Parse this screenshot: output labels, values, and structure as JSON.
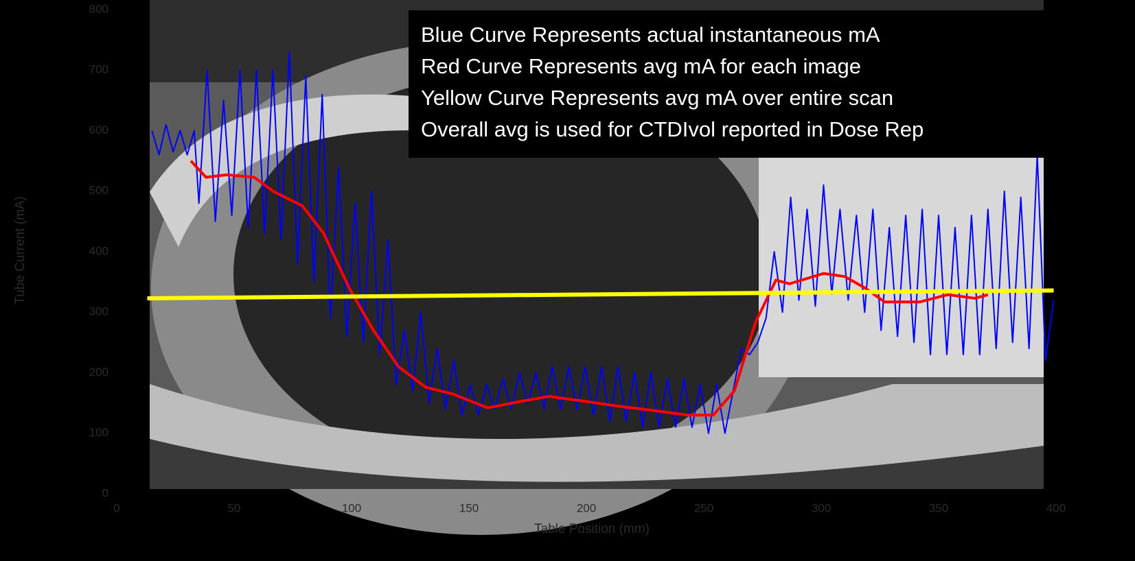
{
  "chart_data": {
    "type": "line",
    "x_label": "Table Position (mm)",
    "y_label": "Tube Current (mA)",
    "xlim": [
      0,
      400
    ],
    "ylim": [
      0,
      800
    ],
    "xticks": [
      0,
      50,
      100,
      150,
      200,
      250,
      300,
      350,
      400
    ],
    "yticks": [
      0,
      100,
      200,
      300,
      400,
      500,
      600,
      700,
      800
    ],
    "annotations": [
      "Blue Curve Represents actual instantaneous  mA",
      "Red Curve Represents avg mA for each image",
      "Yellow Curve Represents avg mA over entire scan",
      "Overall avg is used for CTDIvol reported in Dose Rep"
    ],
    "series": [
      {
        "color": "#0000ff",
        "width": 2,
        "x": [
          15,
          18,
          21,
          24,
          27,
          30,
          33,
          35,
          38.5,
          42,
          45.5,
          49,
          52.5,
          56,
          59.5,
          63,
          66.5,
          70,
          73.5,
          77,
          80.5,
          84,
          87.5,
          91,
          94.5,
          98,
          101.5,
          105,
          108.5,
          112,
          115.5,
          119,
          122.5,
          126,
          129.5,
          133,
          136.5,
          140,
          143.5,
          147,
          150.5,
          154,
          157.5,
          161,
          164.5,
          168,
          171.5,
          175,
          178.5,
          182,
          185.5,
          189,
          192.5,
          196,
          199.5,
          203,
          206.5,
          210,
          213.5,
          217,
          220.5,
          224,
          227.5,
          231,
          234.5,
          238,
          241.5,
          245,
          248.5,
          252,
          255.5,
          259,
          262.5,
          266,
          269.5,
          273,
          276.5,
          280,
          283.5,
          287,
          290.5,
          294,
          297.5,
          301,
          304.5,
          308,
          311.5,
          315,
          318.5,
          322,
          325.5,
          329,
          332.5,
          336,
          339.5,
          343,
          346.5,
          350,
          353.5,
          357,
          360.5,
          364,
          367.5,
          371,
          374.5,
          378,
          381.5,
          385,
          388.5,
          392,
          395.5,
          399
        ],
        "values": [
          600,
          560,
          610,
          565,
          600,
          560,
          600,
          480,
          700,
          450,
          650,
          460,
          700,
          440,
          700,
          430,
          700,
          420,
          730,
          380,
          690,
          350,
          660,
          290,
          540,
          260,
          480,
          250,
          500,
          230,
          420,
          180,
          270,
          170,
          300,
          150,
          240,
          140,
          220,
          130,
          180,
          130,
          180,
          140,
          190,
          140,
          200,
          150,
          200,
          140,
          210,
          140,
          210,
          140,
          210,
          130,
          210,
          120,
          210,
          120,
          200,
          110,
          200,
          110,
          190,
          110,
          190,
          110,
          180,
          100,
          180,
          100,
          170,
          240,
          230,
          250,
          290,
          400,
          300,
          490,
          320,
          470,
          310,
          510,
          330,
          470,
          320,
          460,
          300,
          470,
          270,
          440,
          260,
          460,
          250,
          470,
          230,
          460,
          230,
          440,
          230,
          460,
          230,
          470,
          240,
          500,
          250,
          490,
          240,
          560,
          220,
          320
        ]
      },
      {
        "color": "#ff0000",
        "width": 4,
        "x": [
          31.6,
          38,
          46.8,
          58.5,
          67,
          79,
          88,
          99,
          109,
          120,
          131.6,
          143,
          158,
          172.5,
          184,
          199,
          213,
          228,
          243,
          254,
          263,
          272,
          280.7,
          286.5,
          301,
          310,
          318.7,
          327,
          342,
          353.8,
          365.5,
          371
        ],
        "values": [
          550,
          523,
          527,
          523,
          499,
          476,
          431,
          340,
          272,
          210,
          176,
          165,
          142,
          153,
          161,
          153,
          145,
          138,
          130,
          130,
          170,
          283,
          353,
          347,
          364,
          359,
          340,
          317,
          317,
          329,
          323,
          329
        ]
      },
      {
        "color": "#ffff00",
        "width": 6,
        "x": [
          13,
          399
        ],
        "values": [
          323,
          336
        ]
      }
    ]
  }
}
